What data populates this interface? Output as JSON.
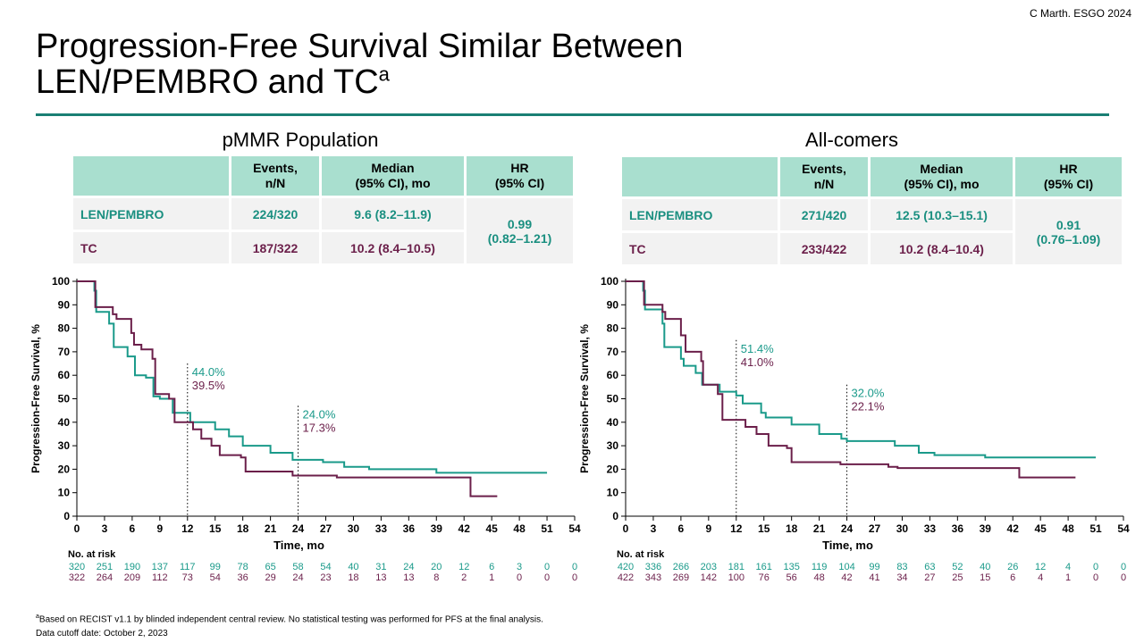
{
  "citation": "C Marth.  ESGO 2024",
  "title_line1": "Progression-Free Survival Similar Between",
  "title_line2": "LEN/PEMBRO and TC",
  "title_sup": "a",
  "colors": {
    "len_pembro": "#1a9a8a",
    "tc": "#6b1f4a",
    "accent": "#1a7f74",
    "header_fill": "#a9dfcf"
  },
  "panels": [
    {
      "title": "pMMR Population",
      "table": {
        "headers": [
          "",
          "Events,\nn/N",
          "Median\n(95% CI), mo",
          "HR\n(95% CI)"
        ],
        "rows": [
          {
            "arm": "LEN/PEMBRO",
            "events": "224/320",
            "median": "9.6 (8.2–11.9)"
          },
          {
            "arm": "TC",
            "events": "187/322",
            "median": "10.2 (8.4–10.5)"
          }
        ],
        "hr": "0.99",
        "hr_ci": "(0.82–1.21)"
      }
    },
    {
      "title": "All-comers",
      "table": {
        "headers": [
          "",
          "Events,\nn/N",
          "Median\n(95% CI), mo",
          "HR\n(95% CI)"
        ],
        "rows": [
          {
            "arm": "LEN/PEMBRO",
            "events": "271/420",
            "median": "12.5 (10.3–15.1)"
          },
          {
            "arm": "TC",
            "events": "233/422",
            "median": "10.2 (8.4–10.4)"
          }
        ],
        "hr": "0.91",
        "hr_ci": "(0.76–1.09)"
      }
    }
  ],
  "chart_data": [
    {
      "type": "line",
      "subtype": "kaplan-meier",
      "xlabel": "Time, mo",
      "ylabel": "Progression-Free Survival, %",
      "xlim": [
        0,
        54
      ],
      "ylim": [
        0,
        100
      ],
      "xticks": [
        0,
        3,
        6,
        9,
        12,
        15,
        18,
        21,
        24,
        27,
        30,
        33,
        36,
        39,
        42,
        45,
        48,
        51,
        54
      ],
      "yticks": [
        0,
        10,
        20,
        30,
        40,
        50,
        60,
        70,
        80,
        90,
        100
      ],
      "series": [
        {
          "name": "LEN/PEMBRO",
          "color": "#1a9a8a",
          "points": [
            [
              0,
              100
            ],
            [
              1.9,
              96
            ],
            [
              2.1,
              87
            ],
            [
              3.5,
              82
            ],
            [
              4,
              72
            ],
            [
              5.5,
              68
            ],
            [
              6.3,
              60
            ],
            [
              7.5,
              59
            ],
            [
              8.3,
              51
            ],
            [
              9,
              50
            ],
            [
              10.4,
              44
            ],
            [
              12.3,
              40
            ],
            [
              15,
              37
            ],
            [
              16.5,
              34
            ],
            [
              18,
              30
            ],
            [
              21,
              27
            ],
            [
              23.4,
              24
            ],
            [
              26.7,
              23
            ],
            [
              29,
              21
            ],
            [
              31.7,
              20
            ],
            [
              39,
              18.5
            ],
            [
              51,
              18.5
            ]
          ]
        },
        {
          "name": "TC",
          "color": "#6b1f4a",
          "points": [
            [
              0,
              100
            ],
            [
              2,
              89
            ],
            [
              3.9,
              86
            ],
            [
              4.3,
              84
            ],
            [
              5.9,
              78
            ],
            [
              6.2,
              73
            ],
            [
              7,
              71
            ],
            [
              8.2,
              67
            ],
            [
              8.5,
              52
            ],
            [
              10,
              50
            ],
            [
              10.6,
              40
            ],
            [
              12.6,
              37
            ],
            [
              13.5,
              33
            ],
            [
              14.6,
              30
            ],
            [
              15.5,
              26
            ],
            [
              17.8,
              25
            ],
            [
              18.3,
              19
            ],
            [
              23.4,
              17.3
            ],
            [
              28.2,
              16.5
            ],
            [
              42.7,
              8.5
            ],
            [
              45.6,
              8.5
            ]
          ]
        }
      ],
      "annotations": [
        {
          "time": 12,
          "values": [
            "44.0%",
            "39.5%"
          ]
        },
        {
          "time": 24,
          "values": [
            "24.0%",
            "17.3%"
          ]
        }
      ],
      "at_risk_label": "No. at risk",
      "at_risk": [
        [
          "320",
          "251",
          "190",
          "137",
          "117",
          "99",
          "78",
          "65",
          "58",
          "54",
          "40",
          "31",
          "24",
          "20",
          "12",
          "6",
          "3",
          "0",
          "0"
        ],
        [
          "322",
          "264",
          "209",
          "112",
          "73",
          "54",
          "36",
          "29",
          "24",
          "23",
          "18",
          "13",
          "13",
          "8",
          "2",
          "1",
          "0",
          "0",
          "0"
        ]
      ]
    },
    {
      "type": "line",
      "subtype": "kaplan-meier",
      "xlabel": "Time, mo",
      "ylabel": "Progression-Free Survival, %",
      "xlim": [
        0,
        54
      ],
      "ylim": [
        0,
        100
      ],
      "xticks": [
        0,
        3,
        6,
        9,
        12,
        15,
        18,
        21,
        24,
        27,
        30,
        33,
        36,
        39,
        42,
        45,
        48,
        51,
        54
      ],
      "yticks": [
        0,
        10,
        20,
        30,
        40,
        50,
        60,
        70,
        80,
        90,
        100
      ],
      "series": [
        {
          "name": "LEN/PEMBRO",
          "color": "#1a9a8a",
          "points": [
            [
              0,
              100
            ],
            [
              1.9,
              96
            ],
            [
              2.1,
              88
            ],
            [
              4,
              82
            ],
            [
              4.2,
              72
            ],
            [
              6,
              67
            ],
            [
              6.3,
              64
            ],
            [
              7.6,
              61
            ],
            [
              8.3,
              56
            ],
            [
              10.2,
              53
            ],
            [
              12,
              51.4
            ],
            [
              12.7,
              48
            ],
            [
              14.7,
              44
            ],
            [
              15.2,
              42
            ],
            [
              18,
              39
            ],
            [
              21,
              35
            ],
            [
              23.4,
              33
            ],
            [
              24,
              32
            ],
            [
              29.2,
              30
            ],
            [
              31.8,
              27
            ],
            [
              33.5,
              26
            ],
            [
              39,
              25
            ],
            [
              51,
              25
            ]
          ]
        },
        {
          "name": "TC",
          "color": "#6b1f4a",
          "points": [
            [
              0,
              100
            ],
            [
              2,
              90
            ],
            [
              4,
              87
            ],
            [
              4.3,
              84
            ],
            [
              6,
              77
            ],
            [
              6.5,
              70
            ],
            [
              8.2,
              66
            ],
            [
              8.4,
              56
            ],
            [
              10,
              52
            ],
            [
              10.5,
              41
            ],
            [
              13,
              38
            ],
            [
              14.2,
              35
            ],
            [
              15.5,
              30
            ],
            [
              17.5,
              29
            ],
            [
              18,
              23
            ],
            [
              23.3,
              22.1
            ],
            [
              28.5,
              21
            ],
            [
              29.5,
              20.5
            ],
            [
              42.7,
              16.5
            ],
            [
              48.8,
              16.5
            ]
          ]
        }
      ],
      "annotations": [
        {
          "time": 12,
          "values": [
            "51.4%",
            "41.0%"
          ]
        },
        {
          "time": 24,
          "values": [
            "32.0%",
            "22.1%"
          ]
        }
      ],
      "at_risk_label": "No. at risk",
      "at_risk": [
        [
          "420",
          "336",
          "266",
          "203",
          "181",
          "161",
          "135",
          "119",
          "104",
          "99",
          "83",
          "63",
          "52",
          "40",
          "26",
          "12",
          "4",
          "0",
          "0"
        ],
        [
          "422",
          "343",
          "269",
          "142",
          "100",
          "76",
          "56",
          "48",
          "42",
          "41",
          "34",
          "27",
          "25",
          "15",
          "6",
          "4",
          "1",
          "0",
          "0"
        ]
      ]
    }
  ],
  "footnote_sup": "a",
  "footnote": "Based on RECIST v1.1 by blinded independent central review. No statistical  testing  was performed for PFS at the final analysis.",
  "cutoff": "Data cutoff date: October 2, 2023"
}
